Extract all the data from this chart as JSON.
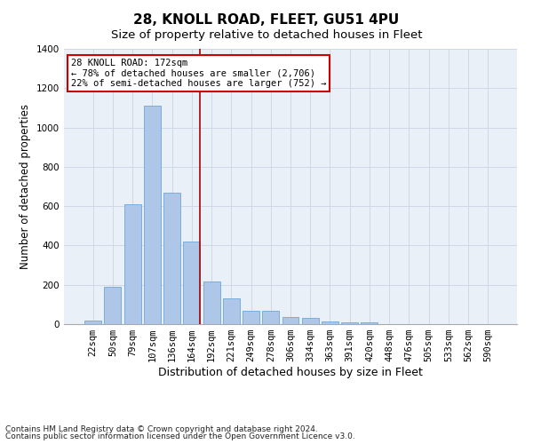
{
  "title1": "28, KNOLL ROAD, FLEET, GU51 4PU",
  "title2": "Size of property relative to detached houses in Fleet",
  "xlabel": "Distribution of detached houses by size in Fleet",
  "ylabel": "Number of detached properties",
  "bar_labels": [
    "22sqm",
    "50sqm",
    "79sqm",
    "107sqm",
    "136sqm",
    "164sqm",
    "192sqm",
    "221sqm",
    "249sqm",
    "278sqm",
    "306sqm",
    "334sqm",
    "363sqm",
    "391sqm",
    "420sqm",
    "448sqm",
    "476sqm",
    "505sqm",
    "533sqm",
    "562sqm",
    "590sqm"
  ],
  "bar_values": [
    20,
    190,
    610,
    1110,
    670,
    420,
    215,
    130,
    70,
    70,
    35,
    30,
    15,
    10,
    10,
    0,
    0,
    0,
    0,
    0,
    0
  ],
  "bar_color": "#aec6e8",
  "bar_edge_color": "#5a9fd4",
  "grid_color": "#d0d8e8",
  "background_color": "#eaf0f8",
  "vline_color": "#aa0000",
  "annotation_text": "28 KNOLL ROAD: 172sqm\n← 78% of detached houses are smaller (2,706)\n22% of semi-detached houses are larger (752) →",
  "annotation_box_color": "#cc0000",
  "ylim": [
    0,
    1400
  ],
  "yticks": [
    0,
    200,
    400,
    600,
    800,
    1000,
    1200,
    1400
  ],
  "footer1": "Contains HM Land Registry data © Crown copyright and database right 2024.",
  "footer2": "Contains public sector information licensed under the Open Government Licence v3.0.",
  "title1_fontsize": 11,
  "title2_fontsize": 9.5,
  "xlabel_fontsize": 9,
  "ylabel_fontsize": 8.5,
  "tick_fontsize": 7.5,
  "annotation_fontsize": 7.5,
  "footer_fontsize": 6.5
}
